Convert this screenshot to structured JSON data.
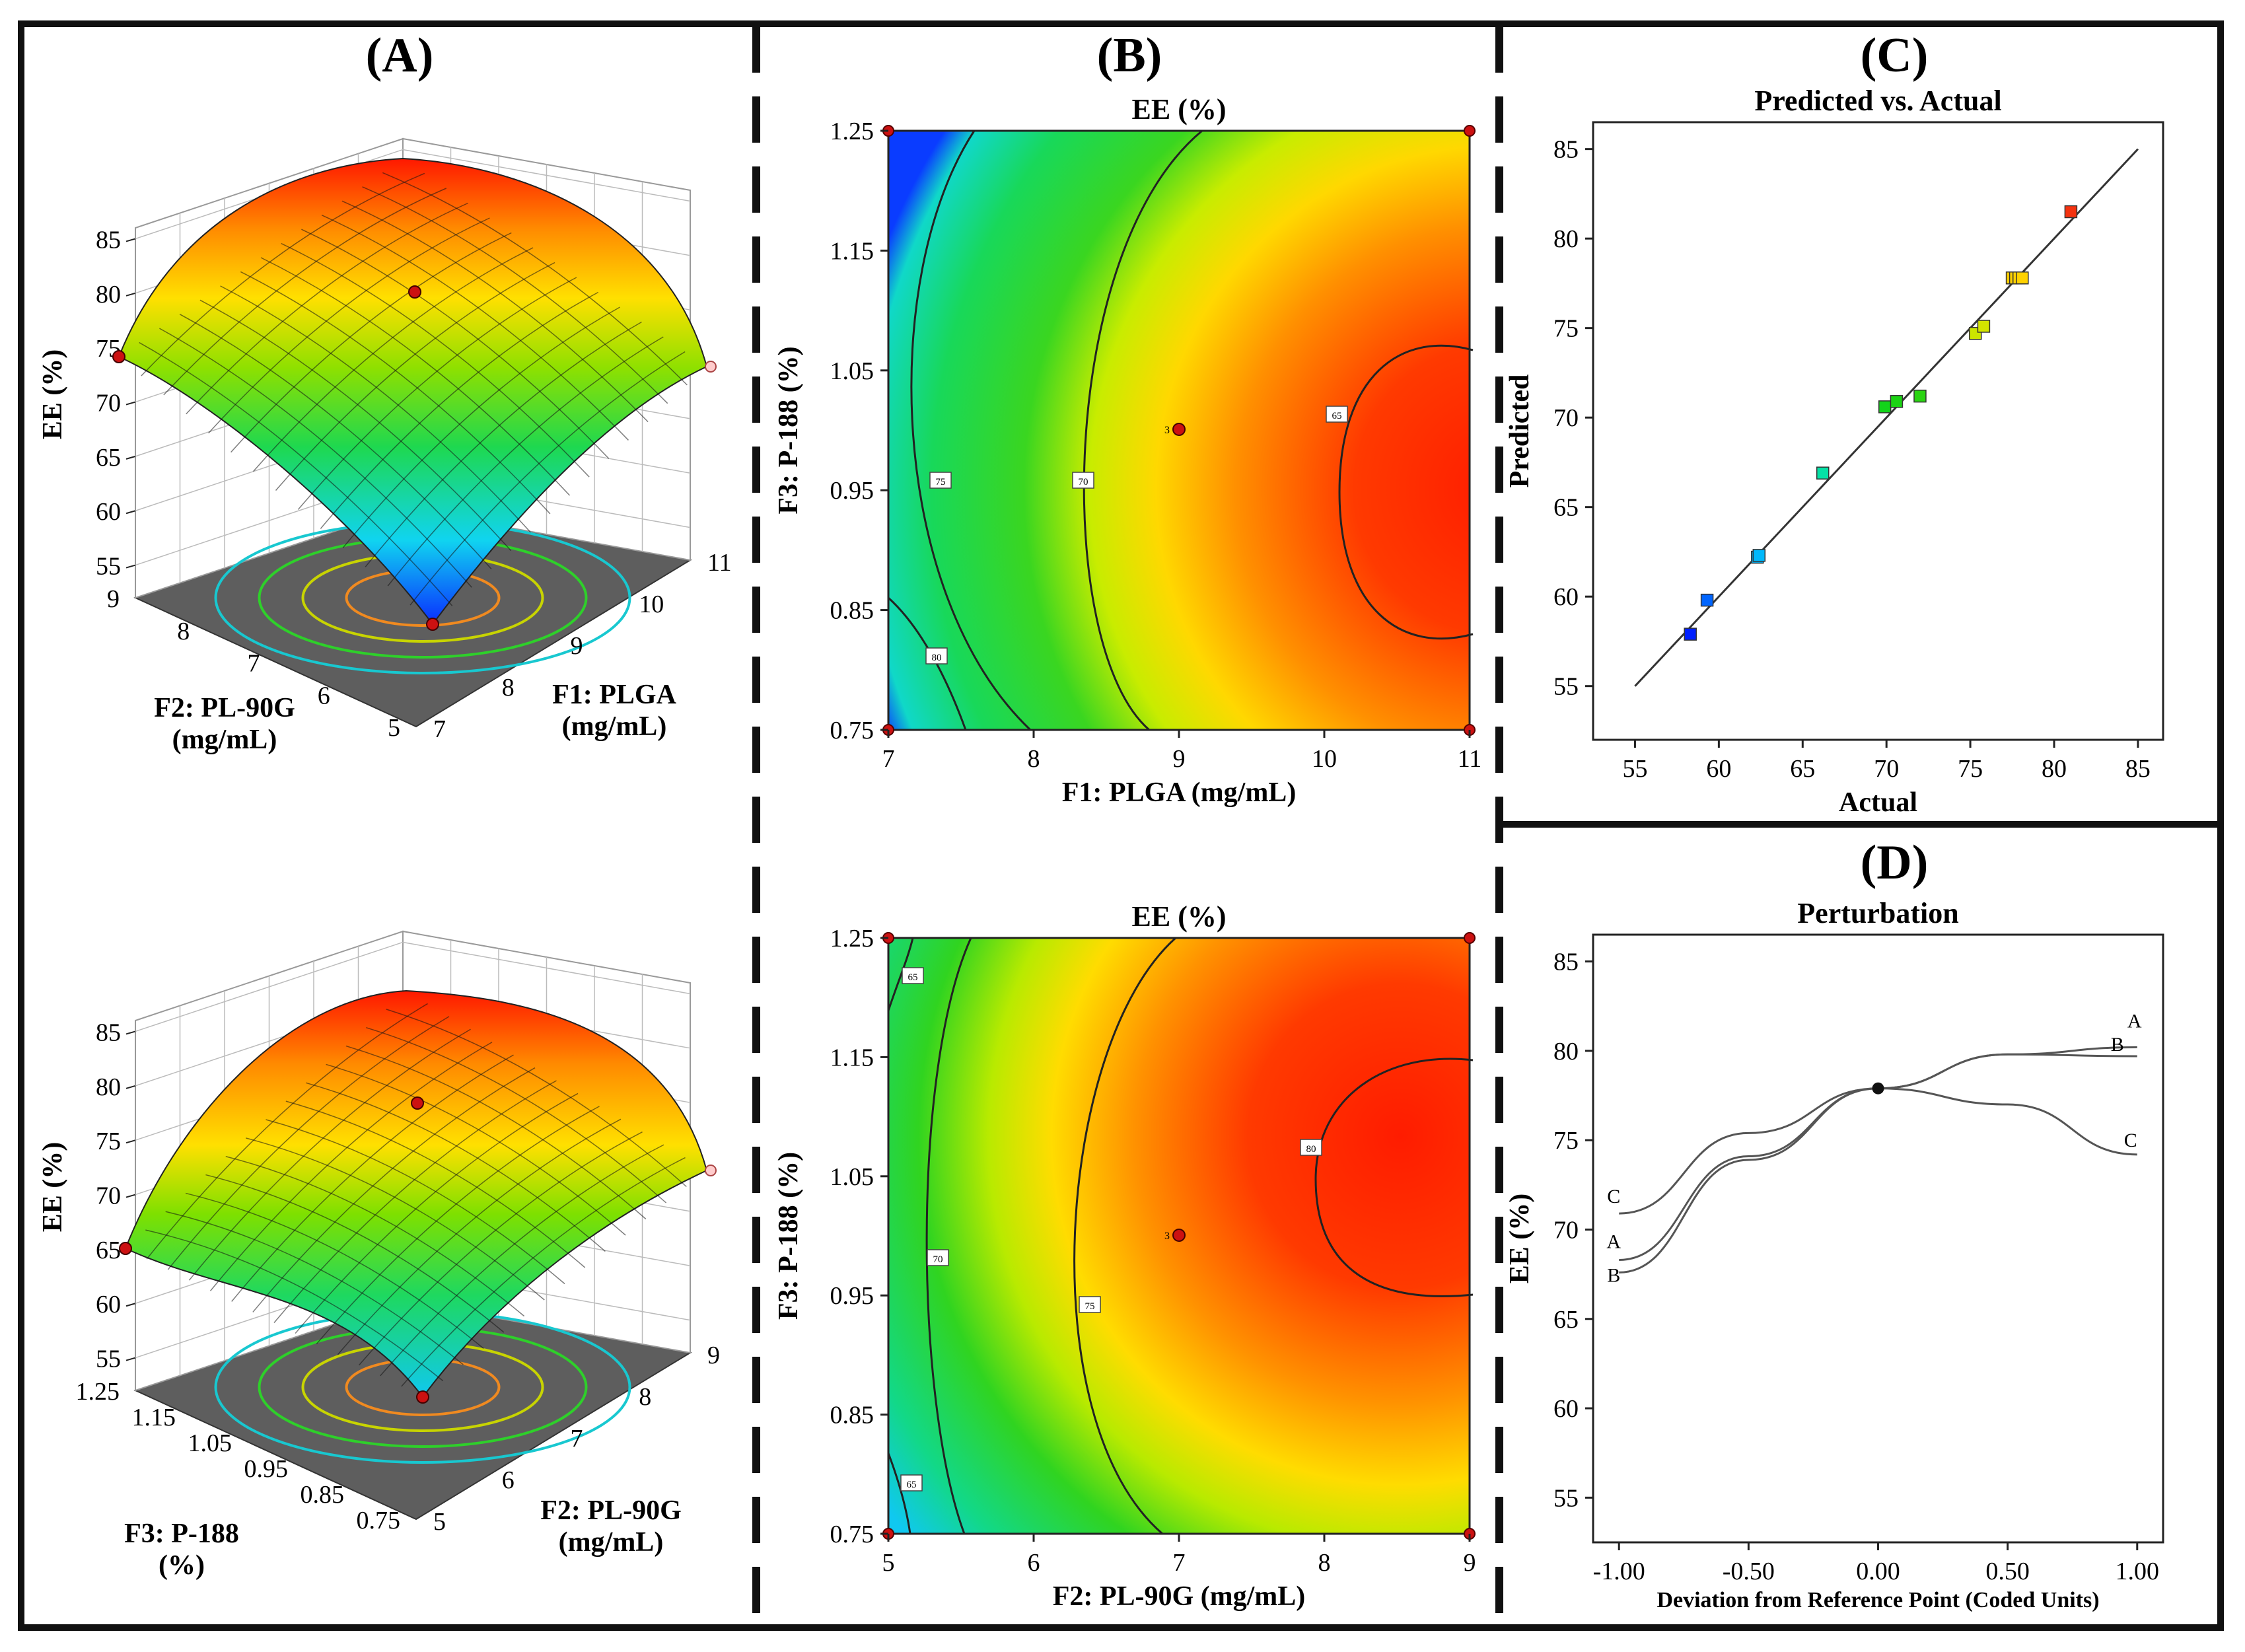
{
  "panels": {
    "A": {
      "label": "(A)"
    },
    "B": {
      "label": "(B)"
    },
    "C": {
      "label": "(C)"
    },
    "D": {
      "label": "(D)"
    }
  },
  "colors": {
    "frame": "#111111",
    "low": "#0a2cff",
    "mid": "#22d23a",
    "high": "#ff2200",
    "floor": "#5a5a5a",
    "design_point": "#cc1111"
  },
  "chart_data": [
    {
      "id": "A-top",
      "type": "surface",
      "title": "",
      "zlabel": "EE (%)",
      "z_ticks": [
        "55",
        "60",
        "65",
        "70",
        "75",
        "80",
        "85"
      ],
      "x_label": [
        "F1: PLGA",
        "(mg/mL)"
      ],
      "x_ticks": [
        "7",
        "8",
        "9",
        "10",
        "11"
      ],
      "y_label": [
        "F2: PL-90G",
        "(mg/mL)"
      ],
      "y_ticks": [
        "5",
        "6",
        "7",
        "8",
        "9"
      ],
      "zlim": [
        52,
        86
      ]
    },
    {
      "id": "A-bottom",
      "type": "surface",
      "title": "",
      "zlabel": "EE (%)",
      "z_ticks": [
        "55",
        "60",
        "65",
        "70",
        "75",
        "80",
        "85"
      ],
      "x_label": [
        "F2: PL-90G",
        "(mg/mL)"
      ],
      "x_ticks": [
        "5",
        "6",
        "7",
        "8",
        "9"
      ],
      "y_label": [
        "F3: P-188",
        "(%)"
      ],
      "y_ticks": [
        "0.75",
        "0.85",
        "0.95",
        "1.05",
        "1.15",
        "1.25"
      ],
      "zlim": [
        52,
        86
      ]
    },
    {
      "id": "B-top",
      "type": "heatmap",
      "title": "EE (%)",
      "xlabel": "F1: PLGA (mg/mL)",
      "ylabel": "F3: P-188 (%)",
      "x_ticks": [
        "7",
        "8",
        "9",
        "10",
        "11"
      ],
      "y_ticks": [
        "0.75",
        "0.85",
        "0.95",
        "1.05",
        "1.15",
        "1.25"
      ],
      "xlim": [
        7,
        11
      ],
      "ylim": [
        0.75,
        1.25
      ],
      "contour_labels": [
        "65",
        "70",
        "75",
        "80"
      ],
      "center_point_label": "3"
    },
    {
      "id": "B-bottom",
      "type": "heatmap",
      "title": "EE (%)",
      "xlabel": "F2: PL-90G (mg/mL)",
      "ylabel": "F3: P-188 (%)",
      "x_ticks": [
        "5",
        "6",
        "7",
        "8",
        "9"
      ],
      "y_ticks": [
        "0.75",
        "0.85",
        "0.95",
        "1.05",
        "1.15",
        "1.25"
      ],
      "xlim": [
        5,
        9
      ],
      "ylim": [
        0.75,
        1.25
      ],
      "contour_labels": [
        "65",
        "65",
        "70",
        "75",
        "80"
      ],
      "center_point_label": "3"
    },
    {
      "id": "C",
      "type": "scatter",
      "title": "Predicted vs. Actual",
      "xlabel": "Actual",
      "ylabel": "Predicted",
      "x_ticks": [
        "55",
        "60",
        "65",
        "70",
        "75",
        "80",
        "85"
      ],
      "y_ticks": [
        "55",
        "60",
        "65",
        "70",
        "75",
        "80",
        "85"
      ],
      "xlim": [
        52.5,
        86.5
      ],
      "ylim": [
        52,
        86.5
      ],
      "points": [
        {
          "x": 58.3,
          "y": 57.9
        },
        {
          "x": 59.3,
          "y": 59.8
        },
        {
          "x": 62.3,
          "y": 62.2
        },
        {
          "x": 62.4,
          "y": 62.3
        },
        {
          "x": 66.2,
          "y": 66.9
        },
        {
          "x": 69.9,
          "y": 70.6
        },
        {
          "x": 70.6,
          "y": 70.9
        },
        {
          "x": 72.0,
          "y": 71.2
        },
        {
          "x": 75.3,
          "y": 74.7
        },
        {
          "x": 75.8,
          "y": 75.1
        },
        {
          "x": 77.5,
          "y": 77.8
        },
        {
          "x": 77.7,
          "y": 77.8
        },
        {
          "x": 77.9,
          "y": 77.8
        },
        {
          "x": 78.1,
          "y": 77.8
        },
        {
          "x": 81.0,
          "y": 81.5
        }
      ],
      "line": {
        "x": [
          55,
          85
        ],
        "y": [
          55,
          85
        ]
      }
    },
    {
      "id": "D",
      "type": "line",
      "title": "Perturbation",
      "xlabel": "Deviation from Reference Point (Coded Units)",
      "ylabel": "EE (%)",
      "x_ticks": [
        "-1.00",
        "-0.50",
        "0.00",
        "0.50",
        "1.00"
      ],
      "y_ticks": [
        "55",
        "60",
        "65",
        "70",
        "75",
        "80",
        "85"
      ],
      "xlim": [
        -1.1,
        1.1
      ],
      "ylim": [
        52.5,
        86.5
      ],
      "reference_point": {
        "x": 0.0,
        "y": 77.9
      },
      "series": [
        {
          "name": "A",
          "x": [
            -1.0,
            -0.5,
            0.0,
            0.5,
            1.0
          ],
          "y": [
            68.3,
            74.1,
            77.9,
            79.8,
            80.2
          ]
        },
        {
          "name": "B",
          "x": [
            -1.0,
            -0.5,
            0.0,
            0.5,
            1.0
          ],
          "y": [
            67.6,
            73.9,
            77.9,
            79.8,
            79.7
          ]
        },
        {
          "name": "C",
          "x": [
            -1.0,
            -0.5,
            0.0,
            0.5,
            1.0
          ],
          "y": [
            70.9,
            75.4,
            77.9,
            77.0,
            74.2
          ]
        }
      ]
    }
  ]
}
